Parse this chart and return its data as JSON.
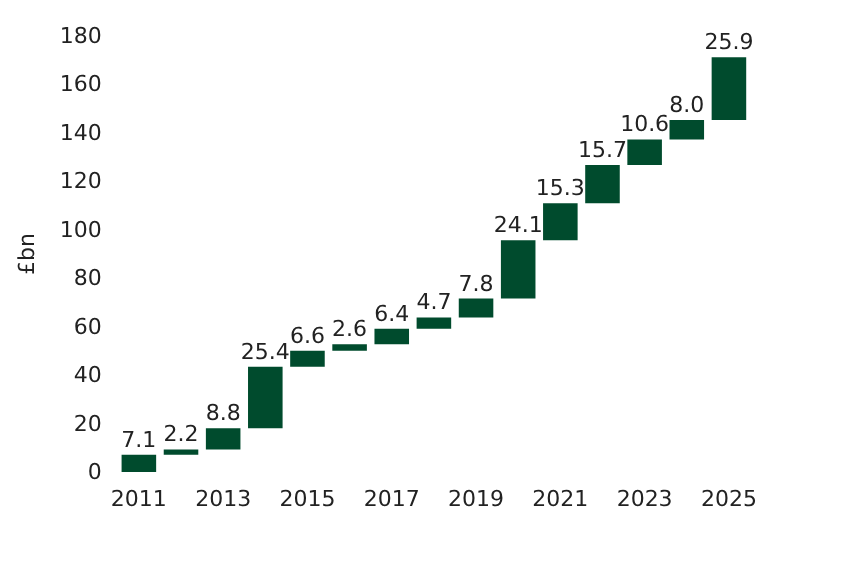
{
  "chart_data": {
    "type": "bar",
    "ylabel": "£bn",
    "categories": [
      "2011",
      null,
      "2013",
      null,
      "2015",
      null,
      "2017",
      null,
      "2019",
      null,
      "2021",
      null,
      "2023",
      null,
      "2025"
    ],
    "values": [
      7.1,
      2.2,
      8.8,
      25.4,
      6.6,
      2.6,
      6.4,
      4.7,
      7.8,
      24.1,
      15.3,
      15.7,
      10.6,
      8.0,
      25.9
    ],
    "base": [
      0,
      7.1,
      9.3,
      18.1,
      43.5,
      50.1,
      52.7,
      59.1,
      63.8,
      71.6,
      95.7,
      111.0,
      126.7,
      137.3,
      145.3
    ],
    "value_labels": [
      "7.1",
      "2.2",
      "8.8",
      "25.4",
      "6.6",
      "2.6",
      "6.4",
      "4.7",
      "7.8",
      "24.1",
      "15.3",
      "15.7",
      "10.6",
      "8.0",
      "25.9"
    ],
    "color": "#004b2d",
    "ylim": [
      0,
      180
    ],
    "yticks": [
      0,
      20,
      40,
      60,
      80,
      100,
      120,
      140,
      160,
      180
    ],
    "grid": false
  }
}
